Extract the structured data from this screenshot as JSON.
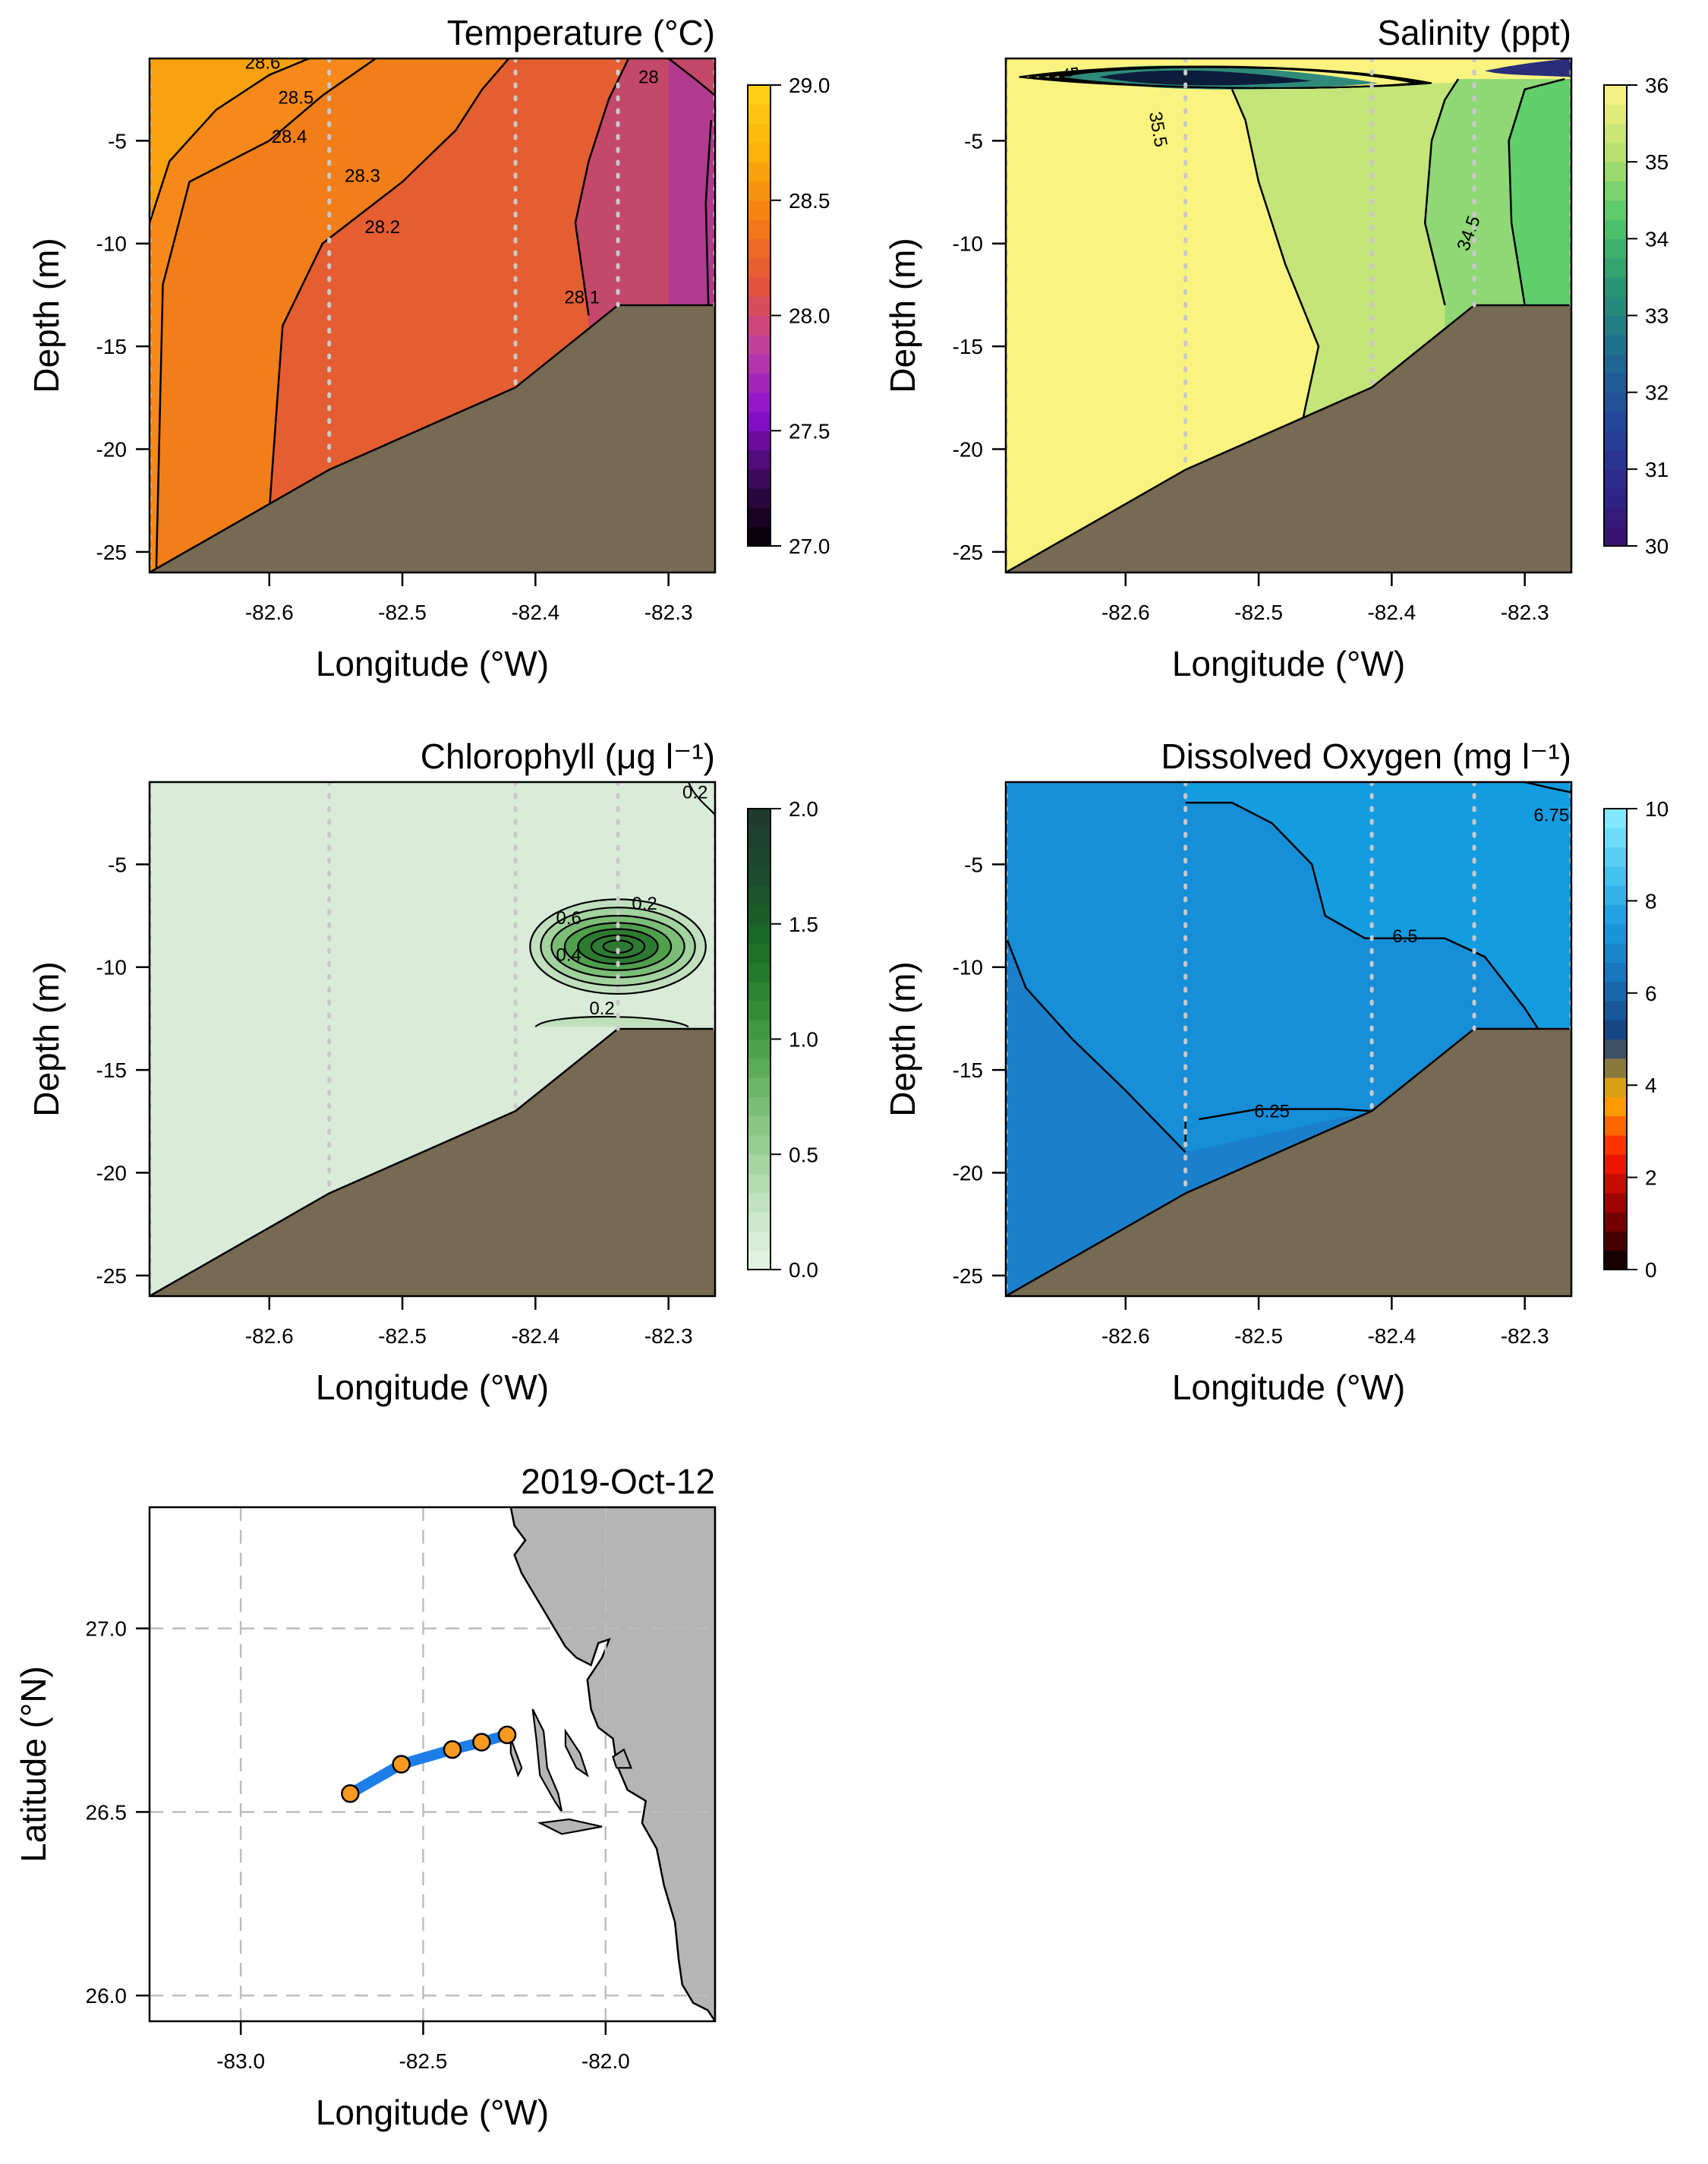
{
  "colors": {
    "seabed": "#766a52",
    "station_line": "#c9c9c9",
    "land": "#b5b5b5",
    "track": "#1e7ee8",
    "station_marker": "#f59a1f",
    "grid": "#bdbdbd"
  },
  "chart_data": [
    {
      "id": "temperature",
      "type": "heatmap",
      "title": "Temperature (°C)",
      "xlabel": "Longitude (°W)",
      "ylabel": "Depth (m)",
      "xlim": [
        -82.69,
        -82.265
      ],
      "ylim": [
        -26,
        -1
      ],
      "x_ticks": [
        "-82.6",
        "-82.5",
        "-82.4",
        "-82.3"
      ],
      "y_ticks": [
        "-5",
        "-10",
        "-15",
        "-20",
        "-25"
      ],
      "colorbar": {
        "min": 27.0,
        "max": 29.0,
        "ticks": [
          "27.0",
          "27.5",
          "28.0",
          "28.5",
          "29.0"
        ],
        "colors": [
          "#000000",
          "#3a0a55",
          "#8a0fd0",
          "#c03fa0",
          "#e3543a",
          "#f57f13",
          "#fbb10a",
          "#ffd21a"
        ]
      },
      "fill_zones": [
        {
          "level": 28.6,
          "color": "#f9a10f"
        },
        {
          "level": 28.45,
          "color": "#f7891a"
        },
        {
          "level": 28.3,
          "color": "#f17e18"
        },
        {
          "level": 28.2,
          "color": "#e45e32"
        },
        {
          "level": 28.05,
          "color": "#c4486a"
        },
        {
          "level": 27.95,
          "color": "#b03a8e"
        }
      ],
      "contour_labels": [
        "28.6",
        "28.5",
        "28.4",
        "28.3",
        "28.2",
        "28.1",
        "28"
      ],
      "stations": [
        -82.69,
        -82.555,
        -82.415,
        -82.338,
        -82.265
      ],
      "bottom_depth": [
        -26,
        -21,
        -17,
        -13,
        -13
      ]
    },
    {
      "id": "salinity",
      "type": "heatmap",
      "title": "Salinity (ppt)",
      "xlabel": "Longitude (°W)",
      "ylabel": "Depth (m)",
      "xlim": [
        -82.69,
        -82.265
      ],
      "ylim": [
        -26,
        -1
      ],
      "x_ticks": [
        "-82.6",
        "-82.5",
        "-82.4",
        "-82.3"
      ],
      "y_ticks": [
        "-5",
        "-10",
        "-15",
        "-20",
        "-25"
      ],
      "colorbar": {
        "min": 30,
        "max": 36,
        "ticks": [
          "30",
          "31",
          "32",
          "33",
          "34",
          "35",
          "36"
        ],
        "colors": [
          "#3b0f70",
          "#2c2b8a",
          "#234a9a",
          "#1f6e8f",
          "#2a9870",
          "#55c86a",
          "#b8e070",
          "#fff386"
        ]
      },
      "fill_zones": [
        {
          "level": 35.7,
          "color": "#fbf380"
        },
        {
          "level": 35.2,
          "color": "#c4e57a"
        },
        {
          "level": 34.7,
          "color": "#8fd875"
        },
        {
          "level": 34.3,
          "color": "#5fce6b"
        }
      ],
      "contour_labels": [
        "35.5",
        "34.5",
        "5"
      ],
      "stations": [
        -82.69,
        -82.555,
        -82.415,
        -82.338,
        -82.265
      ],
      "bottom_depth": [
        -26,
        -21,
        -17,
        -13,
        -13
      ]
    },
    {
      "id": "chlorophyll",
      "type": "heatmap",
      "title": "Chlorophyll (μg l⁻¹)",
      "xlabel": "Longitude (°W)",
      "ylabel": "Depth (m)",
      "xlim": [
        -82.69,
        -82.265
      ],
      "ylim": [
        -26,
        -1
      ],
      "x_ticks": [
        "-82.6",
        "-82.5",
        "-82.4",
        "-82.3"
      ],
      "y_ticks": [
        "-5",
        "-10",
        "-15",
        "-20",
        "-25"
      ],
      "colorbar": {
        "min": 0.0,
        "max": 2.0,
        "ticks": [
          "0.0",
          "0.5",
          "1.0",
          "1.5",
          "2.0"
        ],
        "colors": [
          "#e6f3e5",
          "#c2e2bf",
          "#93cc8f",
          "#5fae5c",
          "#338a33",
          "#1b6a26",
          "#1c4a2e",
          "#1f3a2f"
        ]
      },
      "fill_zones": [
        {
          "level": 0.1,
          "color": "#d9ecd8"
        },
        {
          "level": 0.3,
          "color": "#c0e0bd"
        },
        {
          "level": 0.6,
          "color": "#a2d29e"
        },
        {
          "level": 1.0,
          "color": "#7bbd77"
        },
        {
          "level": 1.4,
          "color": "#4f9f4d"
        },
        {
          "level": 1.8,
          "color": "#2e7a33"
        }
      ],
      "contour_labels": [
        "0.2",
        "0.6",
        "0.2",
        "0.4",
        "0.2"
      ],
      "stations": [
        -82.69,
        -82.555,
        -82.415,
        -82.338,
        -82.265
      ],
      "bottom_depth": [
        -26,
        -21,
        -17,
        -13,
        -13
      ]
    },
    {
      "id": "oxygen",
      "type": "heatmap",
      "title": "Dissolved Oxygen (mg l⁻¹)",
      "xlabel": "Longitude (°W)",
      "ylabel": "Depth (m)",
      "xlim": [
        -82.69,
        -82.265
      ],
      "ylim": [
        -26,
        -1
      ],
      "x_ticks": [
        "-82.6",
        "-82.5",
        "-82.4",
        "-82.3"
      ],
      "y_ticks": [
        "-5",
        "-10",
        "-15",
        "-20",
        "-25"
      ],
      "colorbar": {
        "min": 0,
        "max": 10,
        "ticks": [
          "0",
          "2",
          "4",
          "6",
          "8",
          "10"
        ],
        "colors": [
          "#000000",
          "#8a0000",
          "#ff1a00",
          "#ffb300",
          "#163e7a",
          "#1a6fb5",
          "#1b9ae0",
          "#4fc8f0",
          "#8ceeff"
        ]
      },
      "fill_zones": [
        {
          "level": 6.1,
          "color": "#1a80cc"
        },
        {
          "level": 6.4,
          "color": "#168ed8"
        },
        {
          "level": 6.6,
          "color": "#149ce0"
        }
      ],
      "contour_labels": [
        "6.75",
        "6.5",
        "6.25"
      ],
      "stations": [
        -82.69,
        -82.555,
        -82.415,
        -82.338,
        -82.265
      ],
      "bottom_depth": [
        -26,
        -21,
        -17,
        -13,
        -13
      ]
    },
    {
      "id": "map",
      "type": "scatter",
      "title": "2019-Oct-12",
      "xlabel": "Longitude (°W)",
      "ylabel": "Latitude (°N)",
      "xlim": [
        -83.25,
        -81.7
      ],
      "ylim": [
        25.93,
        27.33
      ],
      "x_ticks": [
        "-83.0",
        "-82.5",
        "-82.0"
      ],
      "y_ticks": [
        "26.0",
        "26.5",
        "27.0"
      ],
      "grid": true,
      "stations": [
        {
          "x": -82.7,
          "y": 26.55
        },
        {
          "x": -82.56,
          "y": 26.63
        },
        {
          "x": -82.42,
          "y": 26.67
        },
        {
          "x": -82.34,
          "y": 26.69
        },
        {
          "x": -82.27,
          "y": 26.71
        }
      ]
    }
  ]
}
